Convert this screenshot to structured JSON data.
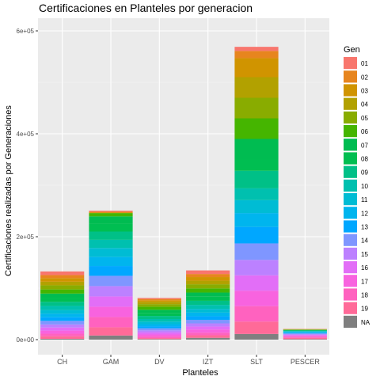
{
  "chart_data": {
    "type": "bar",
    "stacked": true,
    "title": "Certificaciones en Planteles por generacion",
    "xlabel": "Planteles",
    "ylabel": "Certificaciones realizadas por Generaciones",
    "categories": [
      "CH",
      "GAM",
      "DV",
      "IZT",
      "SLT",
      "PESCER"
    ],
    "ylim": [
      0,
      600000
    ],
    "yticks": [
      0,
      200000,
      400000,
      600000
    ],
    "ytick_labels": [
      "0e+00",
      "2e+05",
      "4e+05",
      "6e+05"
    ],
    "grid": true,
    "legend": {
      "title": "Gen",
      "placement": "right"
    },
    "series": [
      {
        "name": "01",
        "color": "#F8766D",
        "values": [
          7000,
          2000,
          2000,
          7000,
          8000,
          300
        ]
      },
      {
        "name": "02",
        "color": "#E7851E",
        "values": [
          6000,
          1500,
          2500,
          6000,
          14000,
          300
        ]
      },
      {
        "name": "03",
        "color": "#D09400",
        "values": [
          7000,
          1000,
          3000,
          7000,
          37000,
          300
        ]
      },
      {
        "name": "04",
        "color": "#B2A100",
        "values": [
          7000,
          0,
          4500,
          7000,
          40000,
          300
        ]
      },
      {
        "name": "05",
        "color": "#89AC00",
        "values": [
          8000,
          0,
          5000,
          8000,
          40000,
          400
        ]
      },
      {
        "name": "06",
        "color": "#45B500",
        "values": [
          8000,
          6500,
          6000,
          8000,
          40000,
          400
        ]
      },
      {
        "name": "07",
        "color": "#00BC51",
        "values": [
          8000,
          14000,
          6000,
          8000,
          40000,
          500
        ]
      },
      {
        "name": "08",
        "color": "#00BE51",
        "values": [
          8000,
          15500,
          6000,
          8000,
          22000,
          800
        ]
      },
      {
        "name": "09",
        "color": "#00C087",
        "values": [
          8000,
          16000,
          6000,
          8000,
          34000,
          800
        ]
      },
      {
        "name": "10",
        "color": "#00C0AF",
        "values": [
          8000,
          16000,
          5000,
          8000,
          23000,
          800
        ]
      },
      {
        "name": "11",
        "color": "#00BCD4",
        "values": [
          7000,
          17000,
          5000,
          7000,
          25000,
          1000
        ]
      },
      {
        "name": "12",
        "color": "#00B5EE",
        "values": [
          7000,
          18000,
          4000,
          7000,
          27000,
          1500
        ]
      },
      {
        "name": "13",
        "color": "#00A7FF",
        "values": [
          7000,
          19000,
          4000,
          7000,
          32000,
          1500
        ]
      },
      {
        "name": "14",
        "color": "#7F96FF",
        "values": [
          7000,
          20000,
          4000,
          7000,
          32000,
          1500
        ]
      },
      {
        "name": "15",
        "color": "#BC81FF",
        "values": [
          6000,
          20000,
          4000,
          6000,
          30000,
          1500
        ]
      },
      {
        "name": "16",
        "color": "#E26EF7",
        "values": [
          6000,
          20000,
          4000,
          6000,
          30000,
          1500
        ]
      },
      {
        "name": "17",
        "color": "#F863DF",
        "values": [
          6000,
          20000,
          4000,
          6000,
          30000,
          2000
        ]
      },
      {
        "name": "18",
        "color": "#FF62BF",
        "values": [
          5000,
          20000,
          3000,
          5000,
          30000,
          2000
        ]
      },
      {
        "name": "19",
        "color": "#FF6A98",
        "values": [
          5000,
          16000,
          2000,
          5000,
          24000,
          2500
        ]
      },
      {
        "name": "NA",
        "color": "#7F7F7F",
        "values": [
          1500,
          8000,
          1000,
          3500,
          11000,
          1000
        ]
      }
    ],
    "colors": {
      "panel_bg": "#EBEBEB",
      "grid_major": "#FFFFFF",
      "grid_minor": "#F5F5F5"
    }
  }
}
